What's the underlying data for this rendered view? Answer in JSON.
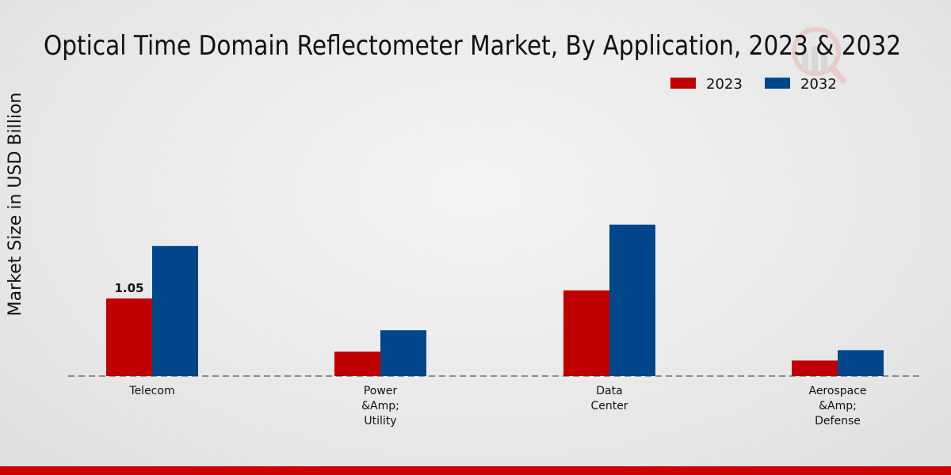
{
  "chart_data": {
    "type": "bar",
    "title": "Optical Time Domain Reflectometer Market, By Application, 2023 & 2032",
    "xlabel": "",
    "ylabel": "Market Size in USD Billion",
    "categories": [
      [
        "Telecom"
      ],
      [
        "Power",
        "&Amp;",
        "Utility"
      ],
      [
        "Data",
        "Center"
      ],
      [
        "Aerospace",
        "&Amp;",
        "Defense"
      ]
    ],
    "series": [
      {
        "name": "2023",
        "color": "#c00000",
        "values": [
          1.05,
          0.33,
          1.16,
          0.21
        ]
      },
      {
        "name": "2032",
        "color": "#00468b",
        "values": [
          1.76,
          0.62,
          2.05,
          0.35
        ]
      }
    ],
    "data_labels": [
      {
        "series": 0,
        "index": 0,
        "text": "1.05"
      }
    ],
    "ylim": [
      0,
      4.2
    ],
    "grid": false,
    "legend": "top-right"
  }
}
